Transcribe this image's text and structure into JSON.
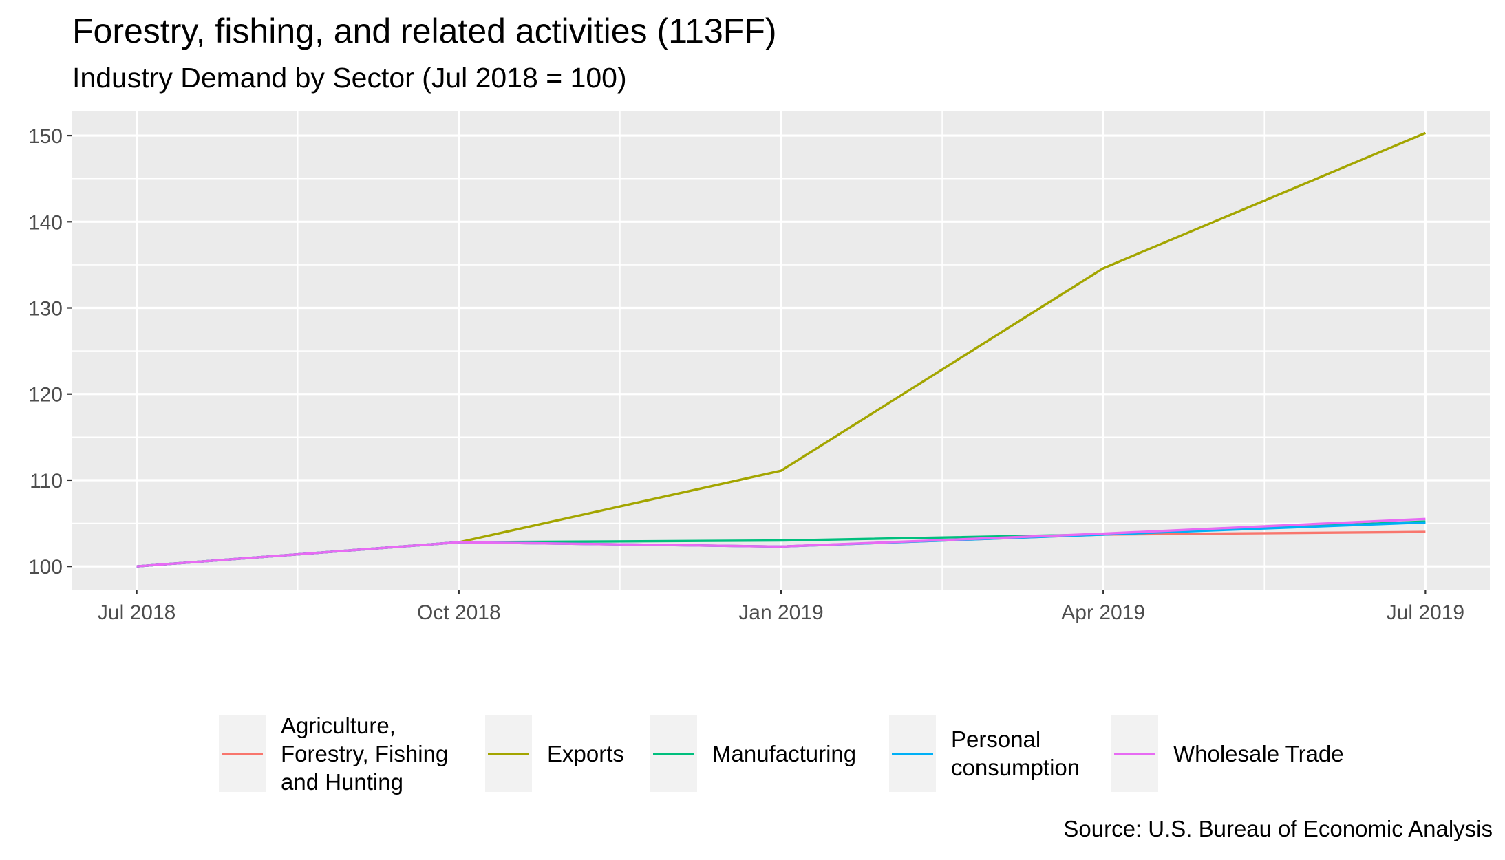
{
  "header": {
    "title": "Forestry, fishing, and related activities (113FF)",
    "subtitle": "Industry Demand by Sector (Jul 2018 = 100)"
  },
  "caption": "Source: U.S. Bureau of Economic Analysis",
  "colors": {
    "panel_background": "#ebebeb",
    "grid": "#ffffff"
  },
  "chart_data": {
    "type": "line",
    "title": "Forestry, fishing, and related activities (113FF)",
    "subtitle": "Industry Demand by Sector (Jul 2018 = 100)",
    "x": [
      "2018-07",
      "2018-10",
      "2019-01",
      "2019-04",
      "2019-07"
    ],
    "x_tick_labels": [
      "Jul 2018",
      "Oct 2018",
      "Jan 2019",
      "Apr 2019",
      "Jul 2019"
    ],
    "y_ticks": [
      100,
      110,
      120,
      130,
      140,
      150
    ],
    "ylim": [
      97.3,
      152.8
    ],
    "grid": true,
    "legend_position": "bottom",
    "series": [
      {
        "name": "Agriculture,\nForestry, Fishing\nand Hunting",
        "color": "#F8766D",
        "values": [
          100,
          102.8,
          102.3,
          103.7,
          104.0
        ]
      },
      {
        "name": "Exports",
        "color": "#A3A500",
        "values": [
          100,
          102.8,
          111.1,
          134.6,
          150.3
        ]
      },
      {
        "name": "Manufacturing",
        "color": "#00BF7D",
        "values": [
          100,
          102.8,
          103.0,
          103.7,
          105.2
        ]
      },
      {
        "name": "Personal\nconsumption",
        "color": "#00B0F6",
        "values": [
          100,
          102.8,
          102.3,
          103.7,
          105.1
        ]
      },
      {
        "name": "Wholesale Trade",
        "color": "#E76BF3",
        "values": [
          100,
          102.8,
          102.3,
          103.8,
          105.5
        ]
      }
    ]
  }
}
